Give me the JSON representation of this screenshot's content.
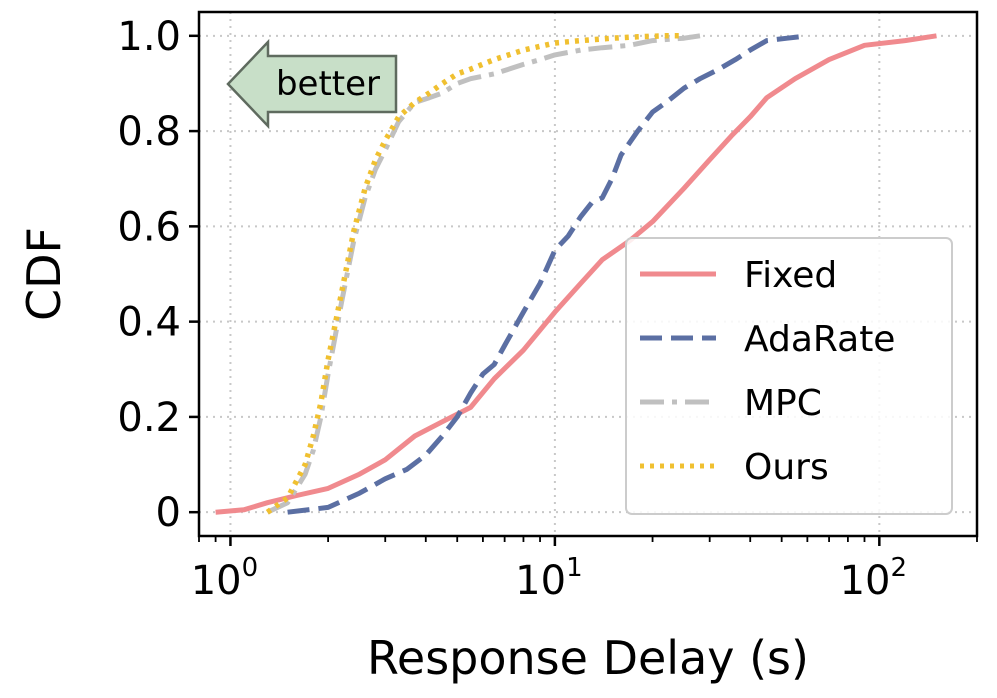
{
  "chart_data": {
    "type": "line",
    "xlabel": "Response Delay (s)",
    "ylabel": "CDF",
    "xscale": "log",
    "xlim": [
      0.8,
      200
    ],
    "ylim": [
      -0.05,
      1.05
    ],
    "xticks": [
      {
        "value": 1,
        "base": "10",
        "exp": "0"
      },
      {
        "value": 10,
        "base": "10",
        "exp": "1"
      },
      {
        "value": 100,
        "base": "10",
        "exp": "2"
      }
    ],
    "yticks": [
      {
        "value": 0,
        "label": "0"
      },
      {
        "value": 0.2,
        "label": "0.2"
      },
      {
        "value": 0.4,
        "label": "0.4"
      },
      {
        "value": 0.6,
        "label": "0.6"
      },
      {
        "value": 0.8,
        "label": "0.8"
      },
      {
        "value": 1.0,
        "label": "1.0"
      }
    ],
    "grid": true,
    "legend_position": "lower-right",
    "annotation": {
      "text": "better",
      "direction": "left",
      "color": "#c8dfc8"
    },
    "series": [
      {
        "name": "Fixed",
        "color": "#f08a8e",
        "style": "solid",
        "x": [
          0.9,
          1.1,
          1.3,
          1.6,
          2.0,
          2.5,
          3.0,
          3.7,
          4.5,
          5.5,
          6.5,
          8.0,
          10.0,
          12.0,
          14.0,
          17.0,
          20.0,
          25.0,
          30.0,
          35.0,
          40.0,
          45.0,
          55.0,
          70.0,
          90.0,
          120.0,
          150.0
        ],
        "y": [
          0.0,
          0.005,
          0.02,
          0.035,
          0.05,
          0.08,
          0.11,
          0.16,
          0.19,
          0.22,
          0.28,
          0.34,
          0.42,
          0.48,
          0.53,
          0.57,
          0.61,
          0.68,
          0.74,
          0.79,
          0.83,
          0.87,
          0.91,
          0.95,
          0.98,
          0.99,
          1.0
        ]
      },
      {
        "name": "AdaRate",
        "color": "#5b6fa3",
        "style": "dashed",
        "x": [
          1.5,
          2.0,
          2.5,
          3.0,
          3.5,
          4.0,
          4.5,
          5.0,
          5.5,
          6.0,
          6.5,
          7.0,
          8.0,
          9.0,
          10.0,
          11.0,
          12.0,
          13.0,
          14.0,
          15.0,
          16.0,
          18.0,
          20.0,
          22.0,
          25.0,
          28.0,
          32.0,
          36.0,
          40.0,
          45.0,
          52.0,
          60.0
        ],
        "y": [
          0.0,
          0.01,
          0.04,
          0.07,
          0.09,
          0.12,
          0.16,
          0.2,
          0.25,
          0.29,
          0.31,
          0.35,
          0.42,
          0.48,
          0.55,
          0.58,
          0.62,
          0.65,
          0.66,
          0.7,
          0.75,
          0.8,
          0.84,
          0.86,
          0.89,
          0.91,
          0.93,
          0.95,
          0.97,
          0.99,
          0.995,
          1.0
        ]
      },
      {
        "name": "MPC",
        "color": "#c0c0c0",
        "style": "dashdot",
        "x": [
          1.3,
          1.5,
          1.7,
          1.8,
          1.9,
          2.0,
          2.2,
          2.4,
          2.6,
          2.8,
          3.0,
          3.3,
          3.7,
          4.1,
          4.5,
          5.0,
          5.5,
          6.5,
          8.0,
          9.0,
          10.0,
          12.0,
          14.0,
          17.0,
          20.0,
          25.0,
          28.0
        ],
        "y": [
          0.0,
          0.02,
          0.08,
          0.13,
          0.2,
          0.29,
          0.44,
          0.57,
          0.66,
          0.72,
          0.76,
          0.82,
          0.86,
          0.87,
          0.88,
          0.9,
          0.91,
          0.92,
          0.94,
          0.95,
          0.96,
          0.97,
          0.975,
          0.98,
          0.99,
          0.995,
          1.0
        ]
      },
      {
        "name": "Ours",
        "color": "#f0c030",
        "style": "dotted",
        "x": [
          1.3,
          1.5,
          1.7,
          1.8,
          1.9,
          2.0,
          2.2,
          2.4,
          2.6,
          2.8,
          3.0,
          3.3,
          3.7,
          4.1,
          4.5,
          5.0,
          5.5,
          6.5,
          8.0,
          10.0,
          12.0,
          15.0,
          18.0,
          22.0,
          25.0
        ],
        "y": [
          0.0,
          0.03,
          0.1,
          0.16,
          0.23,
          0.32,
          0.46,
          0.59,
          0.68,
          0.74,
          0.78,
          0.83,
          0.86,
          0.88,
          0.9,
          0.92,
          0.93,
          0.95,
          0.97,
          0.985,
          0.99,
          0.995,
          0.998,
          1.0,
          1.0
        ]
      }
    ]
  }
}
